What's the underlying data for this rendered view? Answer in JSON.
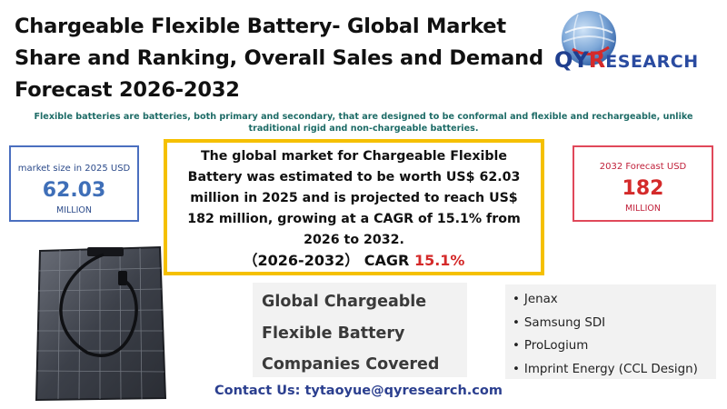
{
  "header": {
    "title_lines": [
      "Chargeable Flexible Battery- Global Market",
      "Share and Ranking, Overall Sales and Demand",
      "Forecast 2026-2032"
    ],
    "subtitle": "Flexible batteries are batteries, both primary and secondary, that are designed to be conformal and flexible and rechargeable, unlike traditional rigid and non-chargeable batteries."
  },
  "logo": {
    "letters_q": "Q",
    "letters_y": "Y",
    "letters_r": "R",
    "rest": "ESEARCH",
    "colors": {
      "blue": "#1f3f8f",
      "red": "#d42a2a"
    }
  },
  "market_2025": {
    "label": "market size in 2025 USD",
    "value": "62.03",
    "unit": "MILLION"
  },
  "forecast_2032": {
    "label": "2032 Forecast  USD",
    "value": "182",
    "unit": "MILLION"
  },
  "summary": {
    "text": "The global market for Chargeable Flexible Battery was estimated to be worth US$ 62.03 million in 2025 and is projected to reach US$ 182 million, growing at a CAGR of 15.1% from 2026 to 2032.",
    "cagr_prefix": "（2026-2032） CAGR",
    "cagr_value": "15.1%"
  },
  "covered": {
    "lines": [
      "Global Chargeable",
      "Flexible Battery",
      "Companies Covered"
    ]
  },
  "companies": [
    "Jenax",
    "Samsung SDI",
    "ProLogium",
    "Imprint Energy (CCL Design)"
  ],
  "contact": "Contact Us: tytaoyue@qyresearch.com",
  "colors": {
    "accent_yellow": "#f5c000",
    "left_border": "#4a6fbf",
    "right_border": "#e0485a",
    "subtitle_teal": "#1d6b66"
  }
}
